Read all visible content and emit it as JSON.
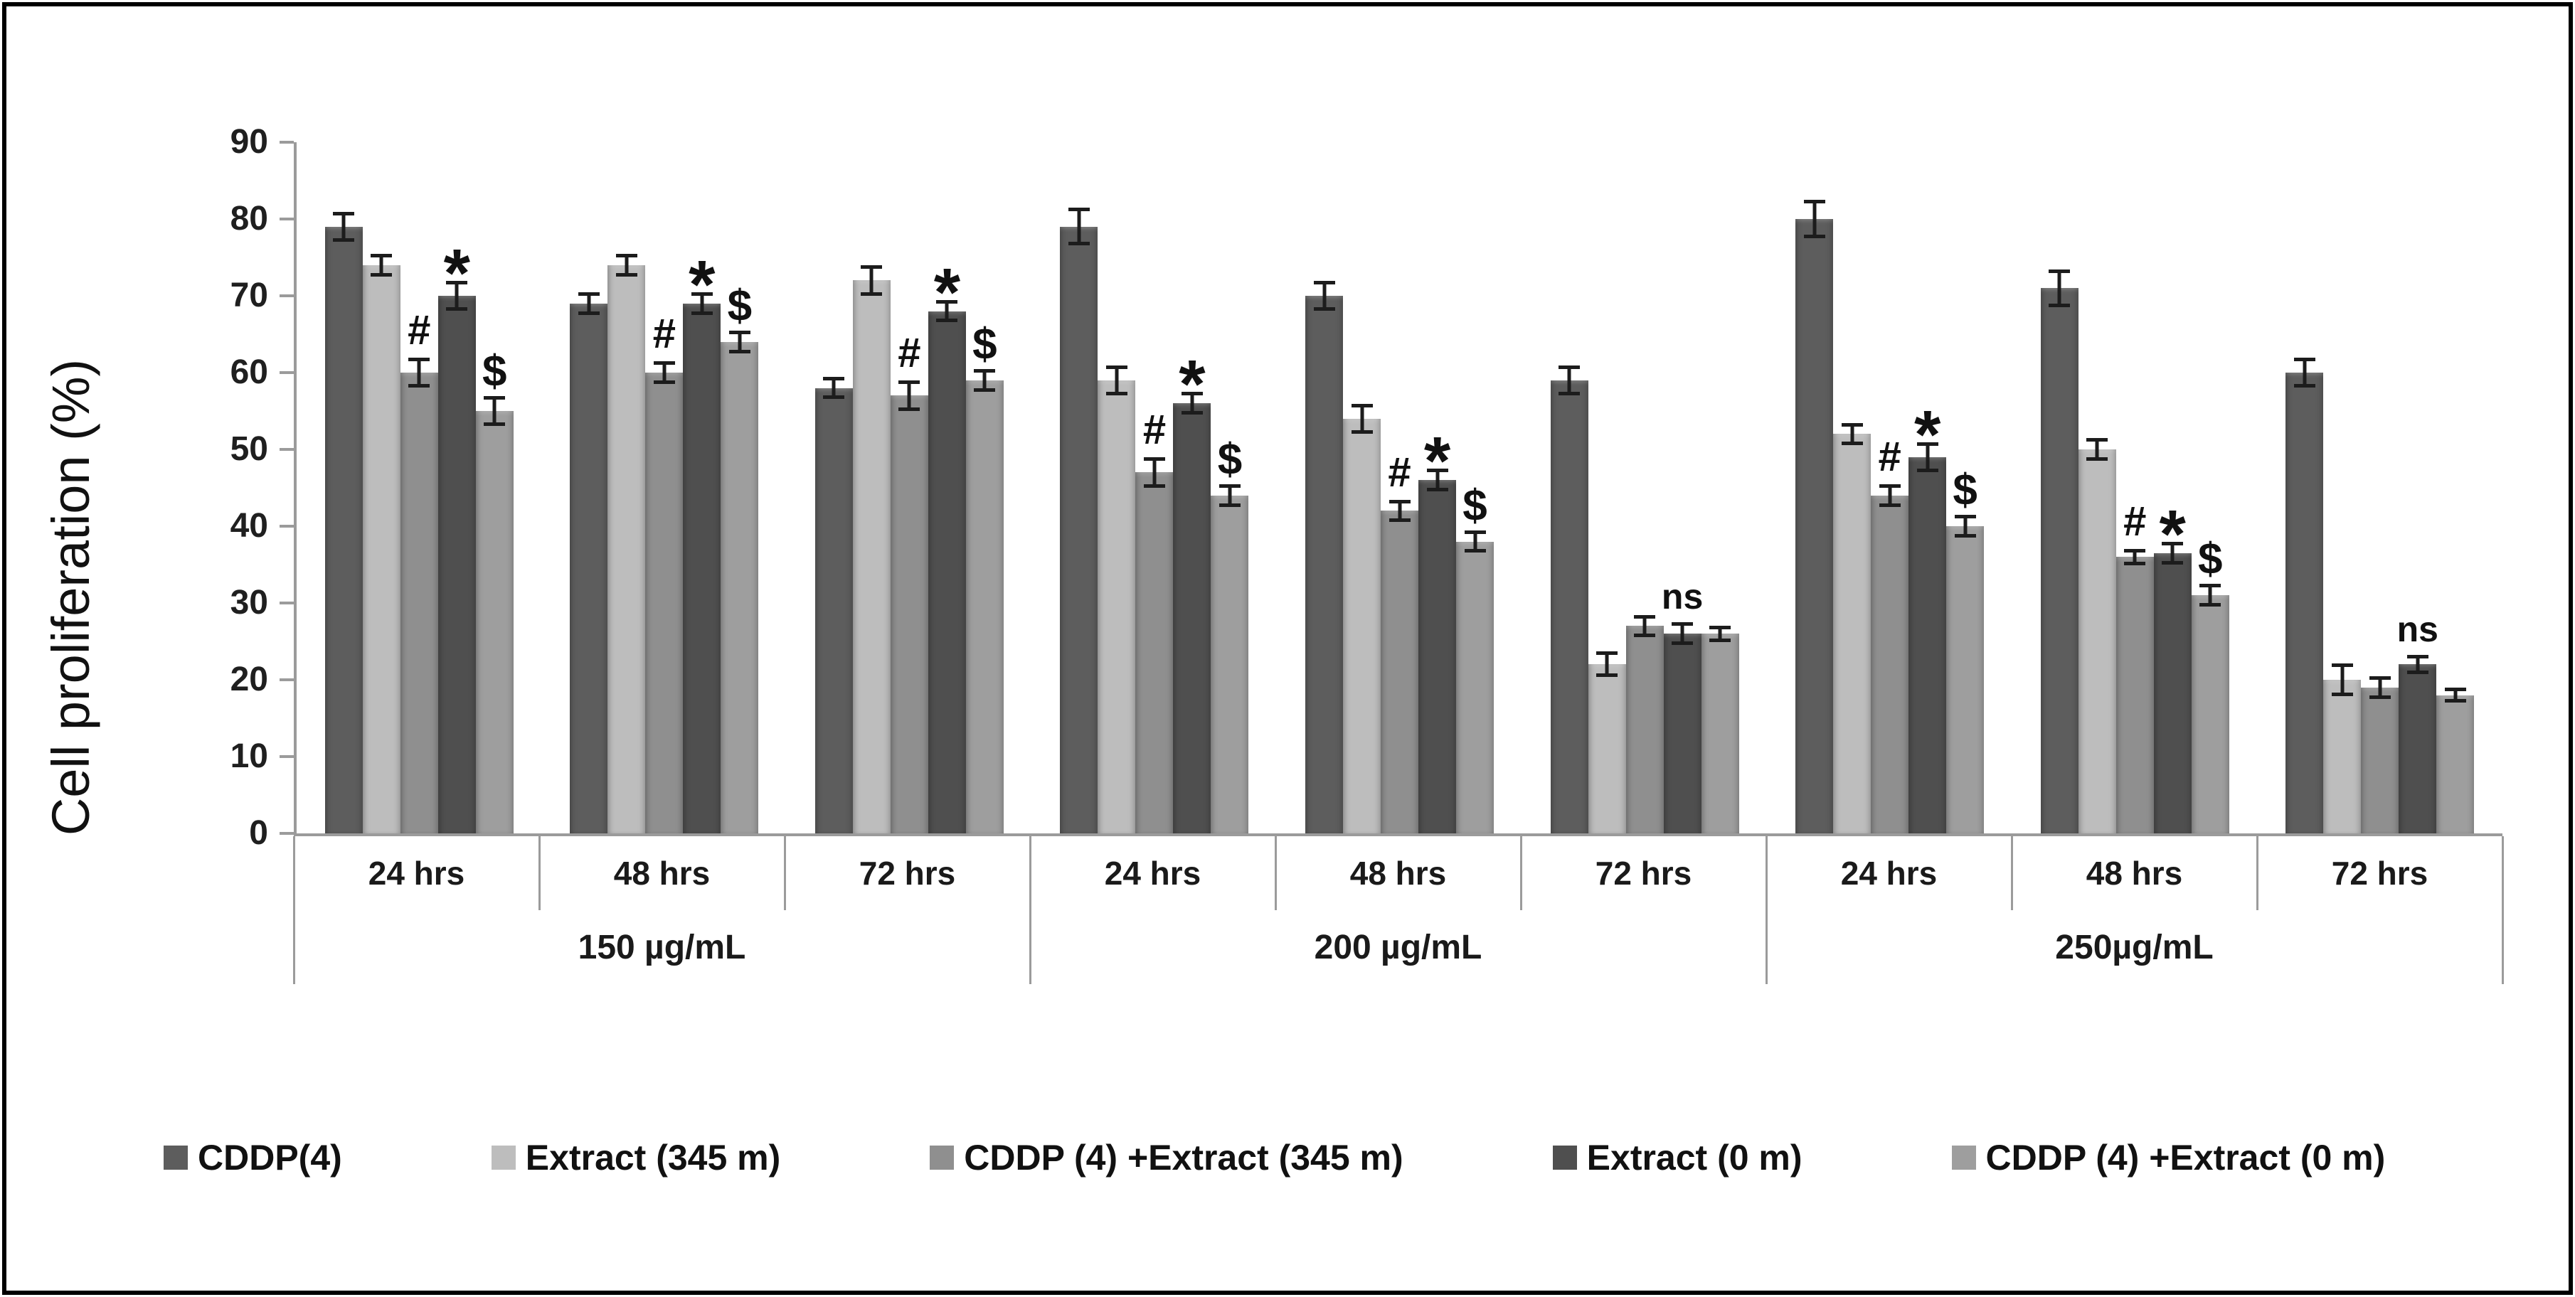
{
  "figure": {
    "background": "#ffffff",
    "border_color": "#000000",
    "axis_color": "#9b9b9b",
    "error_bar_color": "#1c1c1c"
  },
  "chart_data": {
    "type": "bar",
    "title": "",
    "xlabel": "",
    "ylabel": "Cell proliferation (%)",
    "ylim": [
      0,
      90
    ],
    "y_tick_step": 10,
    "grid": false,
    "legend_position": "bottom",
    "group_labels_time": [
      "24 hrs",
      "48 hrs",
      "72 hrs",
      "24 hrs",
      "48 hrs",
      "72 hrs",
      "24 hrs",
      "48 hrs",
      "72 hrs"
    ],
    "group_labels_concentration": [
      "150 µg/mL",
      "200 µg/mL",
      "250µg/mL"
    ],
    "series": [
      {
        "name": "CDDP(4)",
        "color": "#5d5d5d",
        "values": [
          79,
          69,
          58,
          79,
          70,
          59,
          80,
          71,
          60
        ],
        "errors": [
          1.5,
          1,
          1,
          2,
          1.5,
          1.5,
          2,
          2,
          1.5
        ]
      },
      {
        "name": "Extract (345 m)",
        "color": "#bdbdbd",
        "values": [
          74,
          74,
          72,
          59,
          54,
          22,
          52,
          50,
          20
        ],
        "errors": [
          1,
          1,
          1.5,
          1.5,
          1.5,
          1.2,
          1,
          1,
          1.7
        ]
      },
      {
        "name": "CDDP (4) +Extract (345 m)",
        "color": "#8f8f8f",
        "values": [
          60,
          60,
          57,
          47,
          42,
          27,
          44,
          36,
          19
        ],
        "errors": [
          1.5,
          1,
          1.5,
          1.5,
          1,
          1,
          1,
          0.6,
          1
        ]
      },
      {
        "name": "Extract (0 m)",
        "color": "#4f4f4f",
        "values": [
          70,
          69,
          68,
          56,
          46,
          26,
          49,
          36.5,
          22
        ],
        "errors": [
          1.5,
          1,
          1,
          1,
          1,
          1,
          1.5,
          1,
          0.8
        ]
      },
      {
        "name": "CDDP (4) +Extract (0 m)",
        "color": "#9e9e9e",
        "values": [
          55,
          64,
          59,
          44,
          38,
          26,
          40,
          31,
          18
        ],
        "errors": [
          1.5,
          1,
          1,
          1,
          1,
          0.6,
          1,
          1,
          0.5
        ]
      }
    ],
    "annotations": [
      [
        {
          "series": 2,
          "symbol": "#"
        },
        {
          "series": 3,
          "symbol": "*"
        },
        {
          "series": 4,
          "symbol": "$"
        }
      ],
      [
        {
          "series": 2,
          "symbol": "#"
        },
        {
          "series": 3,
          "symbol": "*"
        },
        {
          "series": 4,
          "symbol": "$"
        }
      ],
      [
        {
          "series": 2,
          "symbol": "#"
        },
        {
          "series": 3,
          "symbol": "*"
        },
        {
          "series": 4,
          "symbol": "$"
        }
      ],
      [
        {
          "series": 2,
          "symbol": "#"
        },
        {
          "series": 3,
          "symbol": "*"
        },
        {
          "series": 4,
          "symbol": "$"
        }
      ],
      [
        {
          "series": 2,
          "symbol": "#"
        },
        {
          "series": 3,
          "symbol": "*"
        },
        {
          "series": 4,
          "symbol": "$"
        }
      ],
      [
        {
          "series": 3,
          "symbol": "ns"
        }
      ],
      [
        {
          "series": 2,
          "symbol": "#"
        },
        {
          "series": 3,
          "symbol": "*"
        },
        {
          "series": 4,
          "symbol": "$"
        }
      ],
      [
        {
          "series": 2,
          "symbol": "#"
        },
        {
          "series": 3,
          "symbol": "*"
        },
        {
          "series": 4,
          "symbol": "$"
        }
      ],
      [
        {
          "series": 3,
          "symbol": "ns"
        }
      ]
    ]
  },
  "legend": {
    "items": [
      {
        "label": "CDDP(4)",
        "color": "#5d5d5d"
      },
      {
        "label": "Extract (345 m)",
        "color": "#bdbdbd"
      },
      {
        "label": "CDDP (4) +Extract (345 m)",
        "color": "#8f8f8f"
      },
      {
        "label": "Extract (0 m)",
        "color": "#4f4f4f"
      },
      {
        "label": "CDDP (4) +Extract (0 m)",
        "color": "#9e9e9e"
      }
    ]
  }
}
